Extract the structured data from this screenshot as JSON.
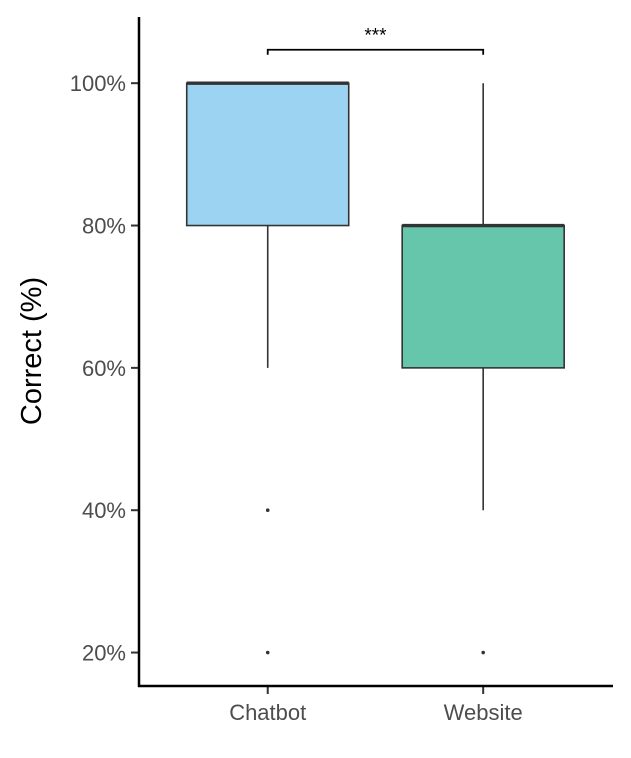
{
  "chart_data": {
    "type": "box",
    "title": "",
    "xlabel": "",
    "ylabel": "Correct (%)",
    "ylim": [
      15.3,
      109.3
    ],
    "y_ticks": [
      20,
      40,
      60,
      80,
      100
    ],
    "y_tick_labels": [
      "20%",
      "40%",
      "60%",
      "80%",
      "100%"
    ],
    "grid": false,
    "legend": "none",
    "categories": [
      "Chatbot",
      "Website"
    ],
    "boxes": [
      {
        "name": "Chatbot",
        "whisker_low": 60,
        "q1": 80,
        "median": 100,
        "q3": 100,
        "whisker_high": 100,
        "outliers": [
          40,
          20
        ],
        "color": "#9dd3f2"
      },
      {
        "name": "Website",
        "whisker_low": 40,
        "q1": 60,
        "median": 80,
        "q3": 80,
        "whisker_high": 100,
        "outliers": [
          20
        ],
        "color": "#66c6ac"
      }
    ],
    "annotations": [
      {
        "type": "significance-bracket",
        "between": [
          "Chatbot",
          "Website"
        ],
        "label": "***"
      }
    ],
    "colors": {
      "box_outline": "#333333",
      "axis": "#000000",
      "tick_label": "#4d4d4d"
    }
  }
}
